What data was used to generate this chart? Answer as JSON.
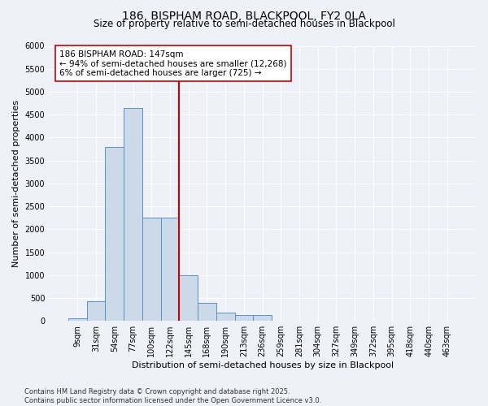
{
  "title1": "186, BISPHAM ROAD, BLACKPOOL, FY2 0LA",
  "title2": "Size of property relative to semi-detached houses in Blackpool",
  "xlabel": "Distribution of semi-detached houses by size in Blackpool",
  "ylabel": "Number of semi-detached properties",
  "categories": [
    "9sqm",
    "31sqm",
    "54sqm",
    "77sqm",
    "100sqm",
    "122sqm",
    "145sqm",
    "168sqm",
    "190sqm",
    "213sqm",
    "236sqm",
    "259sqm",
    "281sqm",
    "304sqm",
    "327sqm",
    "349sqm",
    "372sqm",
    "395sqm",
    "418sqm",
    "440sqm",
    "463sqm"
  ],
  "values": [
    50,
    430,
    3800,
    4650,
    2250,
    2250,
    1000,
    400,
    175,
    130,
    130,
    0,
    0,
    0,
    0,
    0,
    0,
    0,
    0,
    0,
    0
  ],
  "bar_color": "#ccd9e8",
  "bar_edge_color": "#5b8fc9",
  "vline_color": "#cc0000",
  "annotation_text": "186 BISPHAM ROAD: 147sqm\n← 94% of semi-detached houses are smaller (12,268)\n6% of semi-detached houses are larger (725) →",
  "annotation_box_color": "#ffffff",
  "annotation_box_edge": "#cc0000",
  "ylim": [
    0,
    6000
  ],
  "yticks": [
    0,
    500,
    1000,
    1500,
    2000,
    2500,
    3000,
    3500,
    4000,
    4500,
    5000,
    5500,
    6000
  ],
  "footnote": "Contains HM Land Registry data © Crown copyright and database right 2025.\nContains public sector information licensed under the Open Government Licence v3.0.",
  "bg_color": "#eef1f7",
  "grid_color": "#ffffff",
  "title1_fontsize": 10,
  "title2_fontsize": 8.5,
  "tick_fontsize": 7,
  "label_fontsize": 8,
  "footnote_fontsize": 6
}
